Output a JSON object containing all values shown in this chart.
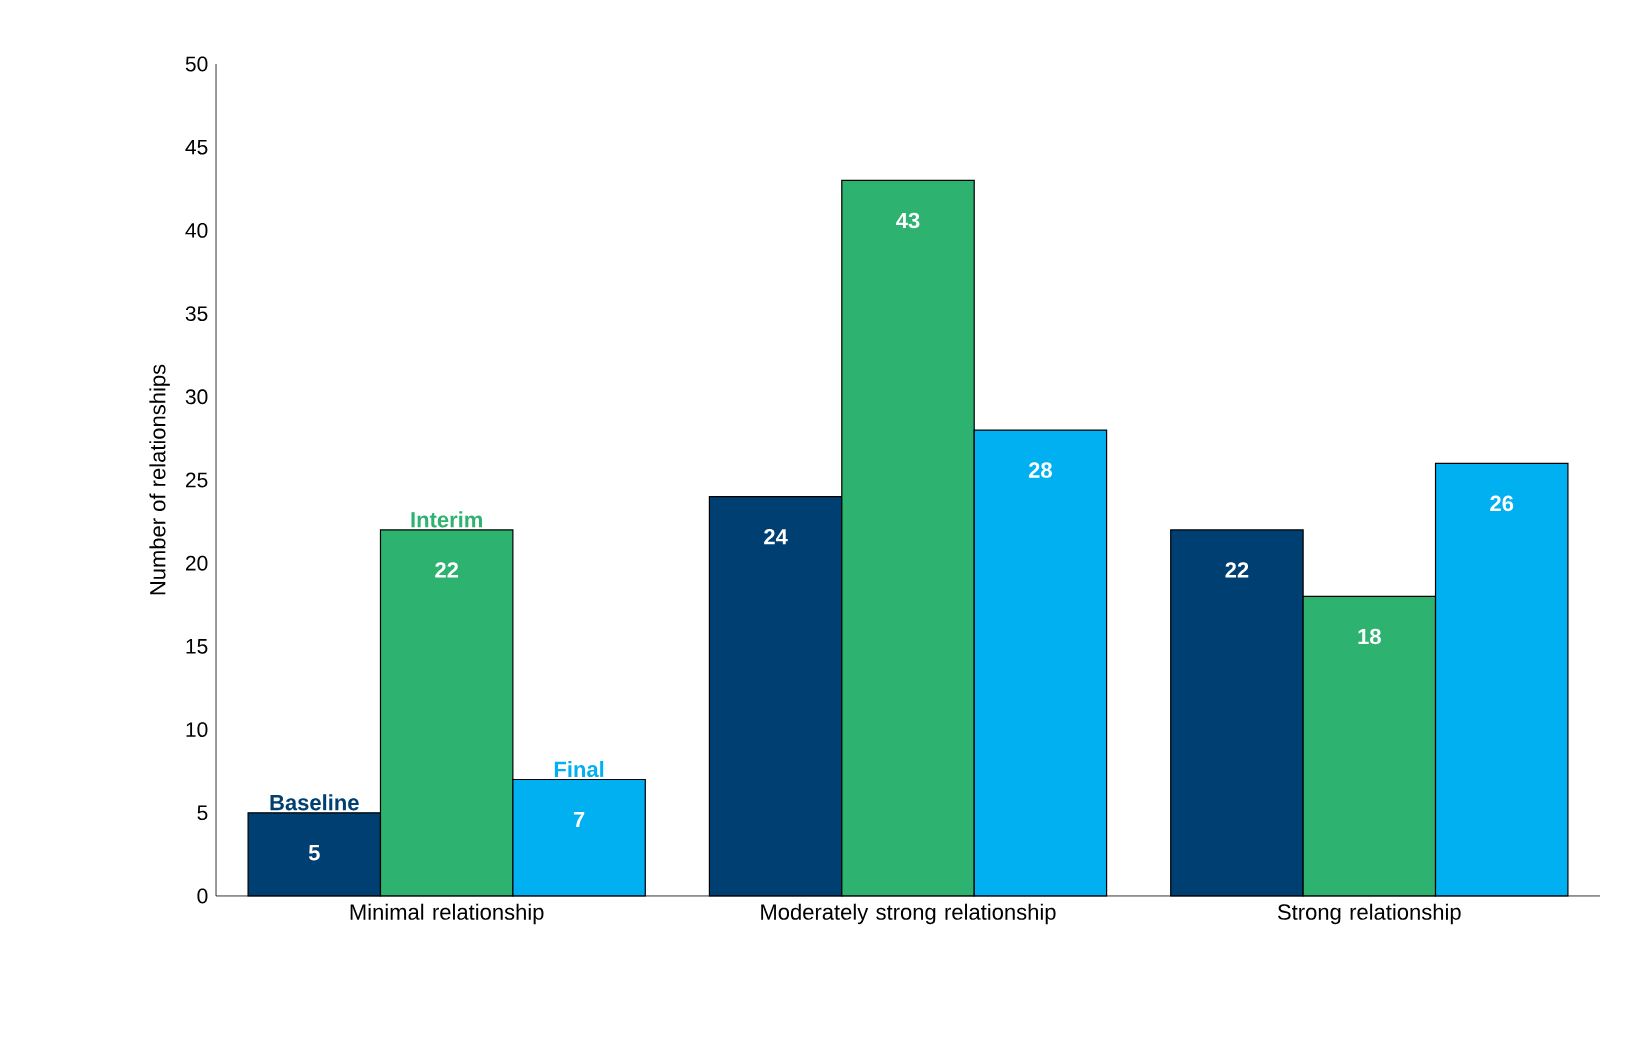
{
  "chart_data": {
    "type": "bar",
    "ylabel": "Number of relationships",
    "categories": [
      "Minimal relationship",
      "Moderately strong relationship",
      "Strong relationship"
    ],
    "series": [
      {
        "name": "Baseline",
        "color": "#003f72",
        "values": [
          5,
          24,
          22
        ]
      },
      {
        "name": "Interim",
        "color": "#2db36f",
        "values": [
          22,
          43,
          18
        ]
      },
      {
        "name": "Final",
        "color": "#00b0f0",
        "values": [
          7,
          28,
          26
        ]
      }
    ],
    "ylim": [
      0,
      50
    ],
    "yticks": [
      0,
      5,
      10,
      15,
      20,
      25,
      30,
      35,
      40,
      45,
      50
    ],
    "data_labels": true
  }
}
